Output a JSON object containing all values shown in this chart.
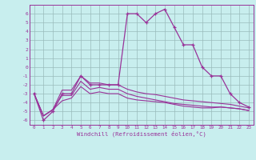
{
  "xlabel": "Windchill (Refroidissement éolien,°C)",
  "x": [
    0,
    1,
    2,
    3,
    4,
    5,
    6,
    7,
    8,
    9,
    10,
    11,
    12,
    13,
    14,
    15,
    16,
    17,
    18,
    19,
    20,
    21,
    22,
    23
  ],
  "line1": [
    -3,
    -6,
    -5,
    -3,
    -3,
    -1,
    -2,
    -2,
    -2,
    -2,
    6,
    6,
    5,
    6,
    6.5,
    4.5,
    2.5,
    2.5,
    0,
    -1,
    -1,
    -3,
    -4,
    -4.5
  ],
  "line2": [
    -3.0,
    -5.5,
    -4.8,
    -2.6,
    -2.6,
    -1.0,
    -1.8,
    -1.8,
    -2.0,
    -2.0,
    -2.5,
    -2.8,
    -3.0,
    -3.1,
    -3.3,
    -3.5,
    -3.7,
    -3.8,
    -3.9,
    -4.0,
    -4.1,
    -4.2,
    -4.4,
    -4.6
  ],
  "line3": [
    -3.0,
    -5.5,
    -4.8,
    -3.2,
    -3.2,
    -1.6,
    -2.5,
    -2.3,
    -2.5,
    -2.5,
    -3.0,
    -3.3,
    -3.5,
    -3.7,
    -3.9,
    -4.1,
    -4.2,
    -4.3,
    -4.4,
    -4.5,
    -4.5,
    -4.6,
    -4.7,
    -4.9
  ],
  "line4": [
    -3.0,
    -5.5,
    -4.8,
    -3.8,
    -3.5,
    -2.2,
    -3.0,
    -2.8,
    -3.0,
    -3.0,
    -3.5,
    -3.7,
    -3.8,
    -3.9,
    -4.0,
    -4.2,
    -4.4,
    -4.5,
    -4.6,
    -4.6,
    -4.5,
    -4.6,
    -4.7,
    -4.9
  ],
  "line_color": "#993399",
  "bg_color": "#c8eeee",
  "grid_color": "#99bbbb",
  "ylim": [
    -6.5,
    7.0
  ],
  "xlim": [
    -0.5,
    23.5
  ],
  "yticks": [
    6,
    5,
    4,
    3,
    2,
    1,
    0,
    -1,
    -2,
    -3,
    -4,
    -5,
    -6
  ],
  "xticks": [
    0,
    1,
    2,
    3,
    4,
    5,
    6,
    7,
    8,
    9,
    10,
    11,
    12,
    13,
    14,
    15,
    16,
    17,
    18,
    19,
    20,
    21,
    22,
    23
  ]
}
